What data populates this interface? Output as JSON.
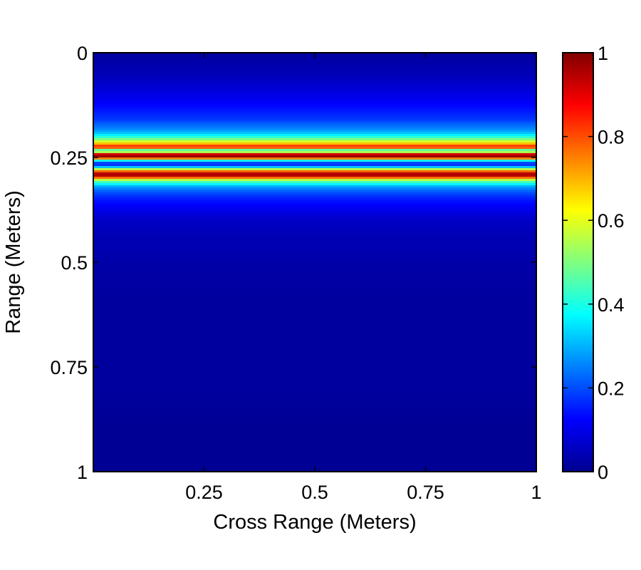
{
  "chart_data": {
    "type": "heatmap",
    "title": "",
    "xlabel": "Cross Range (Meters)",
    "ylabel": "Range (Meters)",
    "x_range": [
      0.0,
      1.0
    ],
    "y_range": [
      0.0,
      1.0
    ],
    "y_reversed": true,
    "x_ticks": [
      "0.25",
      "0.5",
      "0.75",
      "1"
    ],
    "x_tick_values": [
      0.25,
      0.5,
      0.75,
      1.0
    ],
    "y_ticks": [
      "0",
      "0.25",
      "0.5",
      "0.75",
      "1"
    ],
    "y_tick_values": [
      0.0,
      0.25,
      0.5,
      0.75,
      1.0
    ],
    "colorbar": {
      "colormap": "jet",
      "range": [
        0,
        1
      ],
      "ticks": [
        "0",
        "0.2",
        "0.4",
        "0.6",
        "0.8",
        "1"
      ],
      "tick_values": [
        0,
        0.2,
        0.4,
        0.6,
        0.8,
        1
      ]
    },
    "x_variation": "none (horizontal bands, intensity depends only on range)",
    "range_profile": {
      "range": [
        0.0,
        0.02,
        0.04,
        0.06,
        0.08,
        0.1,
        0.12,
        0.14,
        0.16,
        0.17,
        0.18,
        0.19,
        0.2,
        0.21,
        0.22,
        0.225,
        0.23,
        0.235,
        0.24,
        0.245,
        0.25,
        0.255,
        0.26,
        0.265,
        0.27,
        0.275,
        0.28,
        0.285,
        0.29,
        0.295,
        0.3,
        0.305,
        0.31,
        0.315,
        0.32,
        0.33,
        0.34,
        0.35,
        0.36,
        0.37,
        0.38,
        0.39,
        0.4,
        0.42,
        0.44,
        0.46,
        0.5,
        0.6,
        0.7,
        0.8,
        0.9,
        1.0
      ],
      "intensity": [
        0.03,
        0.04,
        0.05,
        0.06,
        0.08,
        0.1,
        0.12,
        0.15,
        0.18,
        0.22,
        0.25,
        0.3,
        0.4,
        0.55,
        0.75,
        0.9,
        0.6,
        0.3,
        0.85,
        1.0,
        0.95,
        0.55,
        0.25,
        0.15,
        0.2,
        0.4,
        0.65,
        0.85,
        1.0,
        0.92,
        0.7,
        0.5,
        0.42,
        0.35,
        0.28,
        0.22,
        0.18,
        0.15,
        0.13,
        0.11,
        0.1,
        0.08,
        0.07,
        0.06,
        0.05,
        0.05,
        0.04,
        0.03,
        0.03,
        0.03,
        0.02,
        0.02
      ]
    }
  }
}
